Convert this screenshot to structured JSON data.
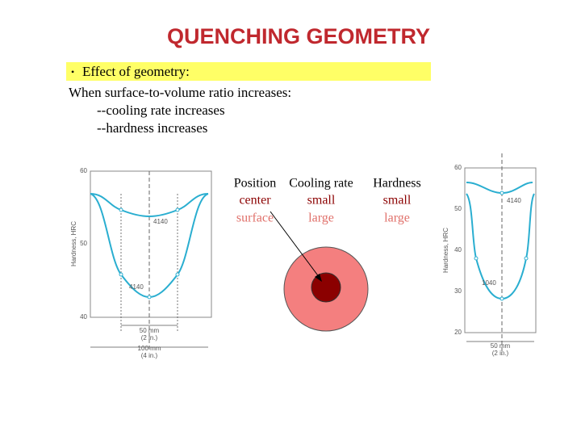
{
  "header": {
    "title": "QUENCHING GEOMETRY"
  },
  "body": {
    "bullet": "Effect of geometry:",
    "lines": [
      "When surface-to-volume ratio increases:",
      "--cooling rate increases",
      "--hardness increases"
    ]
  },
  "left_figure": {
    "axis_label": "Hardness, HRC",
    "ticks": [
      "60",
      "50",
      "40"
    ],
    "curve_labels": [
      "4140",
      "4140"
    ],
    "dimensions": [
      [
        "50 mm",
        "(2 in.)"
      ],
      [
        "100 mm",
        "(4 in.)"
      ]
    ]
  },
  "table": {
    "header": [
      "Position",
      "Cooling rate",
      "Hardness"
    ],
    "rows": [
      [
        "center",
        "small",
        "small"
      ],
      [
        "surface",
        "large",
        "large"
      ]
    ]
  },
  "right_figure": {
    "axis_label": "Hardness, HRC",
    "ticks": [
      "60",
      "50",
      "40",
      "30",
      "20"
    ],
    "curve_labels": [
      "4140",
      "1040"
    ],
    "dimensions": [
      [
        "50 mm",
        "(2 in.)"
      ]
    ]
  }
}
